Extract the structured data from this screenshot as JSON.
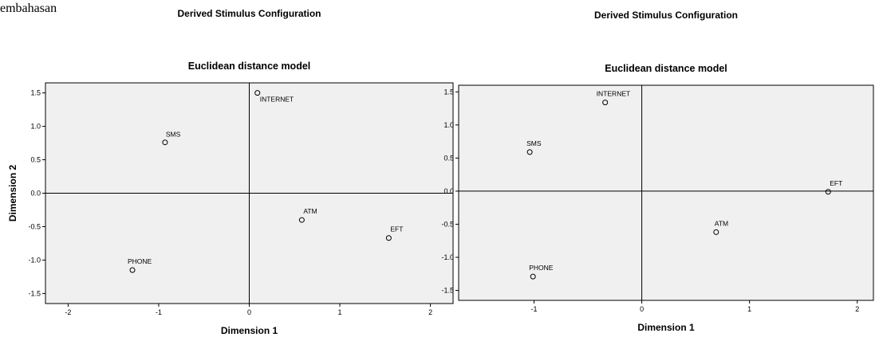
{
  "page": {
    "fragment_text": "embahasan"
  },
  "chart_data": [
    {
      "type": "scatter",
      "title": "Derived Stimulus Configuration",
      "subtitle": "Euclidean distance model",
      "xlabel": "Dimension 1",
      "ylabel": "Dimension 2",
      "xlim": [
        -2.25,
        2.25
      ],
      "ylim": [
        -1.65,
        1.65
      ],
      "x_ticks": [
        -2,
        -1,
        0,
        1,
        2
      ],
      "y_ticks": [
        1.5,
        1.0,
        0.5,
        0.0,
        -0.5,
        -1.0,
        -1.5
      ],
      "x_tick_labels": [
        "-2",
        "-1",
        "0",
        "1",
        "2"
      ],
      "y_tick_labels": [
        "1.5",
        "1.0",
        "0.5",
        "0.0",
        "-0.5",
        "-1.0",
        "-1.5"
      ],
      "grid": false,
      "points": [
        {
          "label": "INTERNET",
          "x": 0.09,
          "y": 1.5
        },
        {
          "label": "SMS",
          "x": -0.93,
          "y": 0.76
        },
        {
          "label": "ATM",
          "x": 0.58,
          "y": -0.4
        },
        {
          "label": "EFT",
          "x": 1.54,
          "y": -0.67
        },
        {
          "label": "PHONE",
          "x": -1.29,
          "y": -1.15
        }
      ]
    },
    {
      "type": "scatter",
      "title": "Derived Stimulus Configuration",
      "subtitle": "Euclidean distance model",
      "xlabel": "Dimension 1",
      "ylabel": "",
      "xlim": [
        -1.7,
        2.15
      ],
      "ylim": [
        -1.65,
        1.6
      ],
      "x_ticks": [
        -1,
        0,
        1,
        2
      ],
      "y_ticks": [
        1.5,
        1.0,
        0.5,
        0.0,
        -0.5,
        -1.0,
        -1.5
      ],
      "x_tick_labels": [
        "-1",
        "0",
        "1",
        "2"
      ],
      "y_tick_labels": [
        "1.5",
        "1.0",
        "0.5",
        "0.0",
        "-0.5",
        "-1.0",
        "-1.5"
      ],
      "grid": false,
      "points": [
        {
          "label": "INTERNET",
          "x": -0.34,
          "y": 1.34
        },
        {
          "label": "SMS",
          "x": -1.04,
          "y": 0.59
        },
        {
          "label": "EFT",
          "x": 1.73,
          "y": -0.01
        },
        {
          "label": "ATM",
          "x": 0.69,
          "y": -0.62
        },
        {
          "label": "PHONE",
          "x": -1.01,
          "y": -1.29
        }
      ]
    }
  ]
}
